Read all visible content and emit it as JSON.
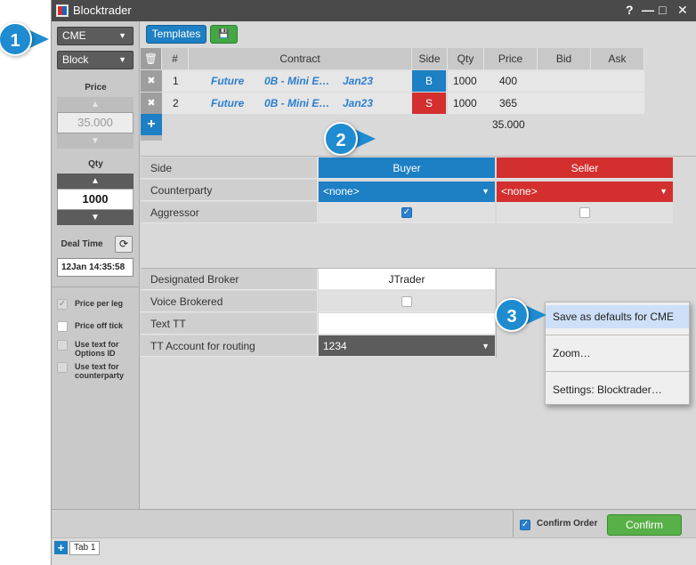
{
  "window": {
    "title": "Blocktrader",
    "controls": [
      "?",
      "—",
      "□",
      "✕"
    ]
  },
  "left_panel": {
    "exchange": "CME",
    "order_type": "Block",
    "price_label": "Price",
    "price_value": "35.000",
    "qty_label": "Qty",
    "qty_value": "1000",
    "deal_time_label": "Deal Time",
    "deal_time_value": "12Jan 14:35:58",
    "options": [
      {
        "label": "Price per leg",
        "checked": true,
        "disabled": true
      },
      {
        "label": "Price off tick",
        "checked": false,
        "disabled": false
      },
      {
        "label": "Use text for Options ID",
        "checked": false,
        "disabled": true
      },
      {
        "label": "Use text for counterparty",
        "checked": false,
        "disabled": true
      }
    ]
  },
  "toolbar": {
    "templates_label": "Templates"
  },
  "legs_table": {
    "headers": [
      "#",
      "Contract",
      "Side",
      "Qty",
      "Price",
      "Bid",
      "Ask"
    ],
    "rows": [
      {
        "num": "1",
        "type": "Future",
        "product": "0B - Mini E…",
        "expiry": "Jan23",
        "side": "B",
        "qty": "1000",
        "price": "400",
        "bid": "",
        "ask": ""
      },
      {
        "num": "2",
        "type": "Future",
        "product": "0B - Mini E…",
        "expiry": "Jan23",
        "side": "S",
        "qty": "1000",
        "price": "365",
        "bid": "",
        "ask": ""
      }
    ],
    "total_price": "35.000"
  },
  "parties": {
    "side_label": "Side",
    "buyer_label": "Buyer",
    "seller_label": "Seller",
    "counterparty_label": "Counterparty",
    "buyer_counterparty": "<none>",
    "seller_counterparty": "<none>",
    "aggressor_label": "Aggressor",
    "buyer_aggressor": true,
    "seller_aggressor": false
  },
  "broker": {
    "designated_broker_label": "Designated Broker",
    "designated_broker_value": "JTrader",
    "voice_brokered_label": "Voice Brokered",
    "voice_brokered": false,
    "text_tt_label": "Text TT",
    "text_tt_value": "",
    "tt_account_label": "TT Account for routing",
    "tt_account_value": "1234"
  },
  "context_menu": {
    "items": [
      "Save as defaults for CME",
      "Zoom…",
      "Settings: Blocktrader…"
    ]
  },
  "footer": {
    "confirm_order_label": "Confirm Order",
    "confirm_button": "Confirm"
  },
  "tabs": [
    "Tab 1"
  ],
  "callouts": [
    "1",
    "2",
    "3"
  ],
  "colors": {
    "buy": "#1d7fc4",
    "sell": "#d32f2f",
    "confirm": "#58b048",
    "callout": "#1f8bd0"
  }
}
